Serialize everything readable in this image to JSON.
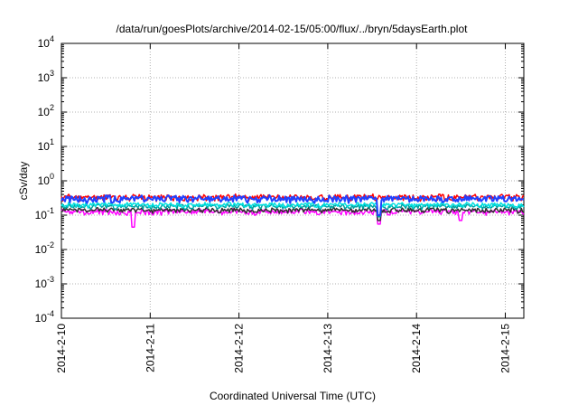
{
  "chart_data": {
    "type": "line",
    "title": "/data/run/goesPlots/archive/2014-02-15/05:00/flux/../bryn/5daysEarth.plot",
    "xlabel": "Coordinated Universal Time (UTC)",
    "ylabel": "cSv/day",
    "yscale": "log",
    "ylim": [
      0.0001,
      10000
    ],
    "xlim": [
      "2014-02-10T00:00",
      "2014-02-15T05:00"
    ],
    "grid": true,
    "x_ticks": [
      "2014-2-10",
      "2014-2-11",
      "2014-2-12",
      "2014-2-13",
      "2014-2-14",
      "2014-2-15"
    ],
    "y_ticks": [
      {
        "value": 0.0001,
        "mantissa": "10",
        "exp": "-4"
      },
      {
        "value": 0.001,
        "mantissa": "10",
        "exp": "-3"
      },
      {
        "value": 0.01,
        "mantissa": "10",
        "exp": "-2"
      },
      {
        "value": 0.1,
        "mantissa": "10",
        "exp": "-1"
      },
      {
        "value": 1,
        "mantissa": "10",
        "exp": "0"
      },
      {
        "value": 10,
        "mantissa": "10",
        "exp": "1"
      },
      {
        "value": 100,
        "mantissa": "10",
        "exp": "2"
      },
      {
        "value": 1000,
        "mantissa": "10",
        "exp": "3"
      },
      {
        "value": 10000,
        "mantissa": "10",
        "exp": "4"
      }
    ],
    "series": [
      {
        "color": "#ff00ff",
        "base": 0.125,
        "amp": 0.18,
        "dips": [
          {
            "x": "2014-02-10T19:30",
            "value": 0.045
          },
          {
            "x": "2014-02-13T14:00",
            "value": 0.055
          },
          {
            "x": "2014-02-14T12:00",
            "value": 0.07
          }
        ]
      },
      {
        "color": "#303030",
        "base": 0.14,
        "amp": 0.15,
        "dips": [
          {
            "x": "2014-02-13T14:00",
            "value": 0.07
          }
        ]
      },
      {
        "color": "#00a0a0",
        "base": 0.18,
        "amp": 0.15,
        "dips": [
          {
            "x": "2014-02-13T14:00",
            "value": 0.09
          }
        ]
      },
      {
        "color": "#00e0e0",
        "base": 0.2,
        "amp": 0.15,
        "dips": [
          {
            "x": "2014-02-13T14:00",
            "value": 0.1
          }
        ]
      },
      {
        "color": "#ff0000",
        "base": 0.33,
        "amp": 0.2,
        "dips": []
      },
      {
        "color": "#2040ff",
        "base": 0.3,
        "amp": 0.22,
        "dips": [
          {
            "x": "2014-02-13T14:00",
            "value": 0.1
          }
        ]
      }
    ]
  }
}
